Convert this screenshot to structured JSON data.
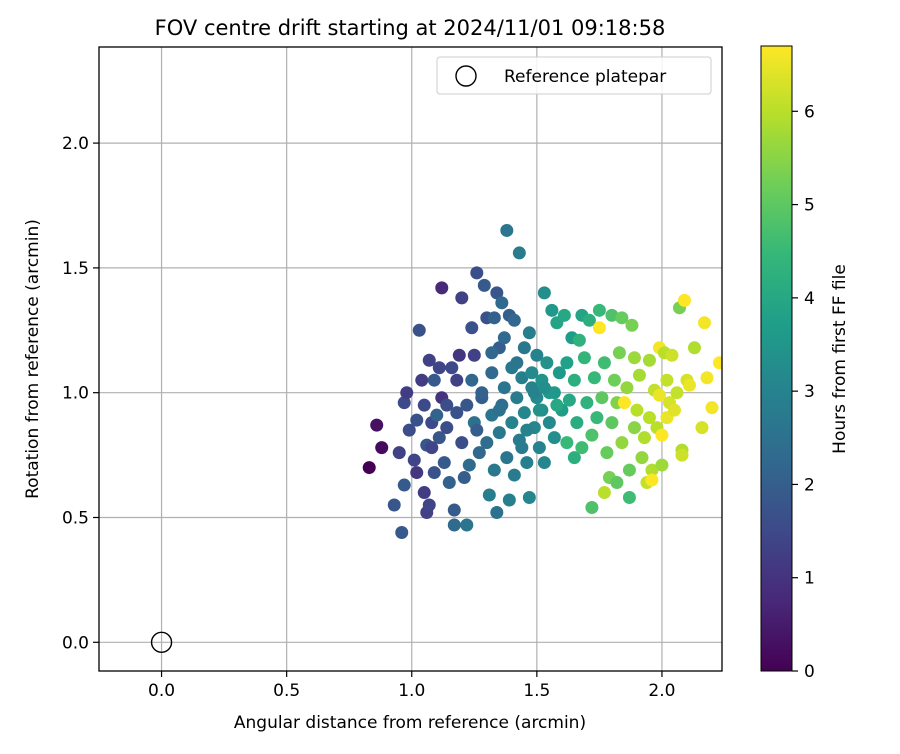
{
  "chart_data": {
    "type": "scatter",
    "title": "FOV centre drift starting at 2024/11/01 09:18:58",
    "xlabel": "Angular distance from reference (arcmin)",
    "ylabel": "Rotation from reference (arcmin)",
    "xlim": [
      -0.25,
      2.24
    ],
    "ylim": [
      -0.115,
      2.385
    ],
    "xticks": [
      0.0,
      0.5,
      1.0,
      1.5,
      2.0
    ],
    "xtick_labels": [
      "0.0",
      "0.5",
      "1.0",
      "1.5",
      "2.0"
    ],
    "yticks": [
      0.0,
      0.5,
      1.0,
      1.5,
      2.0
    ],
    "ytick_labels": [
      "0.0",
      "0.5",
      "1.0",
      "1.5",
      "2.0"
    ],
    "grid": true,
    "legend": {
      "placement": "top-right",
      "label": "Reference platepar"
    },
    "reference_point": {
      "x": 0.0,
      "y": 0.0
    },
    "colorbar": {
      "label": "Hours from first FF file",
      "colormap": "viridis",
      "range": [
        0,
        6.7
      ],
      "ticks": [
        0,
        1,
        2,
        3,
        4,
        5,
        6
      ],
      "tick_labels": [
        "0",
        "1",
        "2",
        "3",
        "4",
        "5",
        "6"
      ]
    },
    "colormap_stops": [
      "#440154",
      "#482878",
      "#3e4989",
      "#31688e",
      "#26828e",
      "#1f9e89",
      "#35b779",
      "#6ece58",
      "#b5de2b",
      "#fde725"
    ],
    "points": [
      [
        0.83,
        0.7,
        0.0
      ],
      [
        0.86,
        0.87,
        0.3
      ],
      [
        0.88,
        0.78,
        0.2
      ],
      [
        0.95,
        0.76,
        1.3
      ],
      [
        0.93,
        0.55,
        1.8
      ],
      [
        0.96,
        0.44,
        1.9
      ],
      [
        0.97,
        0.63,
        1.9
      ],
      [
        0.97,
        0.96,
        1.5
      ],
      [
        0.98,
        1.0,
        1.2
      ],
      [
        0.99,
        0.85,
        1.6
      ],
      [
        1.01,
        0.73,
        1.4
      ],
      [
        1.02,
        0.68,
        1.1
      ],
      [
        1.02,
        0.89,
        1.7
      ],
      [
        1.03,
        1.25,
        1.7
      ],
      [
        1.04,
        1.05,
        1.2
      ],
      [
        1.05,
        0.6,
        1.2
      ],
      [
        1.05,
        0.95,
        1.5
      ],
      [
        1.06,
        0.52,
        1.3
      ],
      [
        1.06,
        0.79,
        1.8
      ],
      [
        1.07,
        0.55,
        1.4
      ],
      [
        1.07,
        1.13,
        1.3
      ],
      [
        1.08,
        0.88,
        1.5
      ],
      [
        1.09,
        0.68,
        1.7
      ],
      [
        1.09,
        1.05,
        1.9
      ],
      [
        1.1,
        0.91,
        2.1
      ],
      [
        1.11,
        0.82,
        1.8
      ],
      [
        1.12,
        1.42,
        0.8
      ],
      [
        1.12,
        0.98,
        1.0
      ],
      [
        1.13,
        0.72,
        1.9
      ],
      [
        1.14,
        0.86,
        1.6
      ],
      [
        1.15,
        0.64,
        2.1
      ],
      [
        1.16,
        1.1,
        1.5
      ],
      [
        1.17,
        0.53,
        1.9
      ],
      [
        1.17,
        0.47,
        2.3
      ],
      [
        1.18,
        0.92,
        1.7
      ],
      [
        1.19,
        1.15,
        1.1
      ],
      [
        1.2,
        0.8,
        1.6
      ],
      [
        1.2,
        1.38,
        1.3
      ],
      [
        1.21,
        0.66,
        2.0
      ],
      [
        1.22,
        0.95,
        1.8
      ],
      [
        1.22,
        0.47,
        2.6
      ],
      [
        1.23,
        0.71,
        2.3
      ],
      [
        1.24,
        1.05,
        2.2
      ],
      [
        1.25,
        0.88,
        2.5
      ],
      [
        1.25,
        1.15,
        1.3
      ],
      [
        1.26,
        1.48,
        1.6
      ],
      [
        1.27,
        0.76,
        2.2
      ],
      [
        1.28,
        0.98,
        2.0
      ],
      [
        1.29,
        1.43,
        1.9
      ],
      [
        1.3,
        1.3,
        1.7
      ],
      [
        1.3,
        0.8,
        2.4
      ],
      [
        1.31,
        0.59,
        2.9
      ],
      [
        1.32,
        1.08,
        2.3
      ],
      [
        1.32,
        0.91,
        2.6
      ],
      [
        1.33,
        0.69,
        2.7
      ],
      [
        1.33,
        1.3,
        2.1
      ],
      [
        1.34,
        0.52,
        2.5
      ],
      [
        1.34,
        1.4,
        1.8
      ],
      [
        1.35,
        0.84,
        2.7
      ],
      [
        1.35,
        1.18,
        2.0
      ],
      [
        1.36,
        1.36,
        2.3
      ],
      [
        1.36,
        0.95,
        2.4
      ],
      [
        1.37,
        1.02,
        2.6
      ],
      [
        1.38,
        0.74,
        2.6
      ],
      [
        1.38,
        1.65,
        2.6
      ],
      [
        1.39,
        0.57,
        2.9
      ],
      [
        1.39,
        1.31,
        2.0
      ],
      [
        1.4,
        1.1,
        2.7
      ],
      [
        1.4,
        0.88,
        3.0
      ],
      [
        1.41,
        0.67,
        2.8
      ],
      [
        1.41,
        1.29,
        2.2
      ],
      [
        1.42,
        0.98,
        2.8
      ],
      [
        1.43,
        1.56,
        2.8
      ],
      [
        1.43,
        0.81,
        2.8
      ],
      [
        1.44,
        1.06,
        2.9
      ],
      [
        1.45,
        0.92,
        3.1
      ],
      [
        1.45,
        1.18,
        2.7
      ],
      [
        1.46,
        0.72,
        2.9
      ],
      [
        1.47,
        1.24,
        2.9
      ],
      [
        1.47,
        0.58,
        3.1
      ],
      [
        1.48,
        1.02,
        3.0
      ],
      [
        1.49,
        0.86,
        3.1
      ],
      [
        1.5,
        0.98,
        3.2
      ],
      [
        1.5,
        1.15,
        3.0
      ],
      [
        1.51,
        0.78,
        3.0
      ],
      [
        1.52,
        1.05,
        3.4
      ],
      [
        1.52,
        0.93,
        3.3
      ],
      [
        1.53,
        1.4,
        3.3
      ],
      [
        1.53,
        0.72,
        3.1
      ],
      [
        1.54,
        1.12,
        3.4
      ],
      [
        1.55,
        0.88,
        3.2
      ],
      [
        1.56,
        1.33,
        3.6
      ],
      [
        1.57,
        1.0,
        3.5
      ],
      [
        1.57,
        0.82,
        3.3
      ],
      [
        1.58,
        1.28,
        3.9
      ],
      [
        1.59,
        1.08,
        3.6
      ],
      [
        1.6,
        0.93,
        3.7
      ],
      [
        1.61,
        1.31,
        4.0
      ],
      [
        1.62,
        1.12,
        3.8
      ],
      [
        1.62,
        0.8,
        4.5
      ],
      [
        1.63,
        0.97,
        4.0
      ],
      [
        1.64,
        1.22,
        3.7
      ],
      [
        1.65,
        0.74,
        4.2
      ],
      [
        1.65,
        1.05,
        4.2
      ],
      [
        1.66,
        0.88,
        4.1
      ],
      [
        1.67,
        1.21,
        4.3
      ],
      [
        1.68,
        1.31,
        3.9
      ],
      [
        1.68,
        0.78,
        4.6
      ],
      [
        1.69,
        1.14,
        4.4
      ],
      [
        1.7,
        0.96,
        4.3
      ],
      [
        1.71,
        1.29,
        4.2
      ],
      [
        1.72,
        0.83,
        4.8
      ],
      [
        1.72,
        0.54,
        4.8
      ],
      [
        1.73,
        1.06,
        4.5
      ],
      [
        1.74,
        0.9,
        4.5
      ],
      [
        1.75,
        1.33,
        4.5
      ],
      [
        1.75,
        1.26,
        6.7
      ],
      [
        1.76,
        0.98,
        5.0
      ],
      [
        1.77,
        1.12,
        4.6
      ],
      [
        1.77,
        0.6,
        6.0
      ],
      [
        1.78,
        0.76,
        5.1
      ],
      [
        1.79,
        0.66,
        5.3
      ],
      [
        1.8,
        1.31,
        4.8
      ],
      [
        1.8,
        0.88,
        5.0
      ],
      [
        1.81,
        1.05,
        5.2
      ],
      [
        1.82,
        0.96,
        5.4
      ],
      [
        1.82,
        0.64,
        5.0
      ],
      [
        1.83,
        1.16,
        5.3
      ],
      [
        1.84,
        1.3,
        5.1
      ],
      [
        1.84,
        0.8,
        5.6
      ],
      [
        1.85,
        0.96,
        6.7
      ],
      [
        1.86,
        1.02,
        5.6
      ],
      [
        1.87,
        0.69,
        5.1
      ],
      [
        1.87,
        0.58,
        4.6
      ],
      [
        1.88,
        1.27,
        5.3
      ],
      [
        1.89,
        0.86,
        5.5
      ],
      [
        1.89,
        1.14,
        5.7
      ],
      [
        1.9,
        0.93,
        6.0
      ],
      [
        1.91,
        1.07,
        5.8
      ],
      [
        1.92,
        0.74,
        5.6
      ],
      [
        1.93,
        0.82,
        5.9
      ],
      [
        1.94,
        0.64,
        6.1
      ],
      [
        1.95,
        1.13,
        5.8
      ],
      [
        1.95,
        0.9,
        6.0
      ],
      [
        1.96,
        0.69,
        5.9
      ],
      [
        1.96,
        0.65,
        6.7
      ],
      [
        1.97,
        1.01,
        6.1
      ],
      [
        1.98,
        0.86,
        6.0
      ],
      [
        1.99,
        0.99,
        6.5
      ],
      [
        1.99,
        1.18,
        6.6
      ],
      [
        2.0,
        0.71,
        5.7
      ],
      [
        2.0,
        0.83,
        6.7
      ],
      [
        2.01,
        1.16,
        6.0
      ],
      [
        2.02,
        1.05,
        6.1
      ],
      [
        2.02,
        0.9,
        6.5
      ],
      [
        2.03,
        0.96,
        6.3
      ],
      [
        2.04,
        1.15,
        6.2
      ],
      [
        2.05,
        0.93,
        6.4
      ],
      [
        2.06,
        1.0,
        6.1
      ],
      [
        2.07,
        1.34,
        5.3
      ],
      [
        2.08,
        0.77,
        5.9
      ],
      [
        2.08,
        0.75,
        6.2
      ],
      [
        2.09,
        1.37,
        6.7
      ],
      [
        2.1,
        1.05,
        6.3
      ],
      [
        2.11,
        1.03,
        6.5
      ],
      [
        2.13,
        1.18,
        5.9
      ],
      [
        2.16,
        0.86,
        6.3
      ],
      [
        2.17,
        1.28,
        6.6
      ],
      [
        2.18,
        1.06,
        6.6
      ],
      [
        2.2,
        0.94,
        6.6
      ],
      [
        2.23,
        1.12,
        6.7
      ],
      [
        1.18,
        1.05,
        1.3
      ],
      [
        1.14,
        0.95,
        1.6
      ],
      [
        1.28,
        1.0,
        2.1
      ],
      [
        1.35,
        0.93,
        2.5
      ],
      [
        1.42,
        1.12,
        2.6
      ],
      [
        1.46,
        0.85,
        3.0
      ],
      [
        1.48,
        1.08,
        3.2
      ],
      [
        1.51,
        0.93,
        3.4
      ],
      [
        1.55,
        1.0,
        3.6
      ],
      [
        1.58,
        0.95,
        4.0
      ],
      [
        1.44,
        0.78,
        2.8
      ],
      [
        1.37,
        1.22,
        2.3
      ],
      [
        1.26,
        0.85,
        2.0
      ],
      [
        1.08,
        0.78,
        1.4
      ],
      [
        1.11,
        1.1,
        1.4
      ],
      [
        1.24,
        1.26,
        1.7
      ],
      [
        1.32,
        1.16,
        2.2
      ],
      [
        1.49,
        1.0,
        3.0
      ],
      [
        1.53,
        1.02,
        3.3
      ]
    ]
  }
}
